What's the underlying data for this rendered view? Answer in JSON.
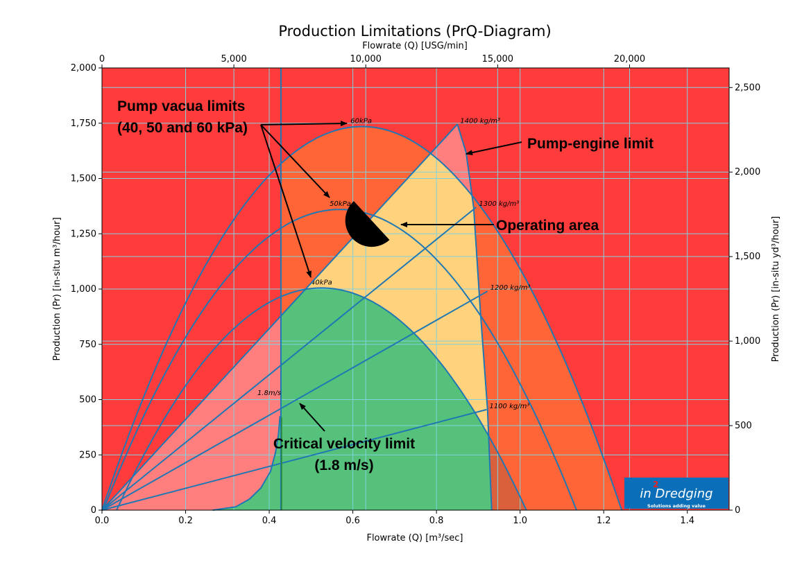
{
  "chart_data": {
    "type": "area",
    "title": "Production Limitations (PrQ-Diagram)",
    "xlabel": "Flowrate (Q) [m³/sec]",
    "ylabel": "Production (Pr) [in-situ m³/hour]",
    "x2label": "Flowrate (Q) [USG/min]",
    "y2label": "Production (Pr) [in-situ yd³/hour]",
    "xlim": [
      0,
      1.5
    ],
    "ylim": [
      0,
      2000
    ],
    "x2lim": [
      0,
      23775
    ],
    "y2lim": [
      0,
      2616
    ],
    "xticks": [
      "0.0",
      "0.2",
      "0.4",
      "0.6",
      "0.8",
      "1.0",
      "1.2",
      "1.4"
    ],
    "yticks": [
      "0",
      "250",
      "500",
      "750",
      "1,000",
      "1,250",
      "1,500",
      "1,750",
      "2,000"
    ],
    "x2ticks": [
      "0",
      "5,000",
      "10,000",
      "15,000",
      "20,000"
    ],
    "y2ticks": [
      "0",
      "500",
      "1,000",
      "1,500",
      "2,000",
      "2,500"
    ],
    "grid": true,
    "vacuum_curves": [
      {
        "label": "40kPa",
        "peak": [
          0.525,
          1005
        ],
        "zeros": [
          0.035,
          1.015
        ]
      },
      {
        "label": "50kPa",
        "peak": [
          0.57,
          1360
        ],
        "zeros": [
          0.003,
          1.135
        ]
      },
      {
        "label": "60kPa",
        "peak": [
          0.62,
          1735
        ],
        "zeros": [
          0.0,
          1.243
        ]
      }
    ],
    "density_lines": [
      {
        "label": "1100 kg/m³",
        "end": [
          0.92,
          455
        ]
      },
      {
        "label": "1200 kg/m³",
        "end": [
          0.922,
          990
        ]
      },
      {
        "label": "1300 kg/m³",
        "end": [
          0.895,
          1370
        ]
      },
      {
        "label": "1400 kg/m³",
        "end": [
          0.85,
          1745
        ]
      }
    ],
    "pump_engine_limit": [
      [
        0.85,
        1745
      ],
      [
        0.871,
        1617
      ],
      [
        0.889,
        1367
      ],
      [
        0.905,
        900
      ],
      [
        0.922,
        458
      ],
      [
        0.932,
        0
      ]
    ],
    "critical_velocity": {
      "label": "1.8m/s",
      "x": 0.428,
      "curve": [
        [
          0.265,
          0
        ],
        [
          0.32,
          15
        ],
        [
          0.353,
          50
        ],
        [
          0.38,
          100
        ],
        [
          0.403,
          175
        ],
        [
          0.415,
          260
        ],
        [
          0.422,
          340
        ],
        [
          0.426,
          426
        ]
      ]
    },
    "operating_area": {
      "center": [
        0.645,
        1310
      ]
    },
    "annotations": {
      "vacua": [
        "Pump vacua limits",
        "(40, 50 and 60 kPa)"
      ],
      "engine": "Pump-engine limit",
      "operating": "Operating area",
      "critical": [
        "Critical velocity limit",
        "(1.8 m/s)"
      ]
    },
    "colors": {
      "background": "#FF3C3C",
      "orange": "#FF6536",
      "pink": "#FF7F7F",
      "yellow": "#FFD27E",
      "green": "#55C17A",
      "dark_orange": "#D9603B",
      "line": "#1F77B4",
      "grid": "#7FD3DF"
    }
  },
  "logo": {
    "brand": "in2Dredging",
    "tagline": "Solutions adding value"
  }
}
